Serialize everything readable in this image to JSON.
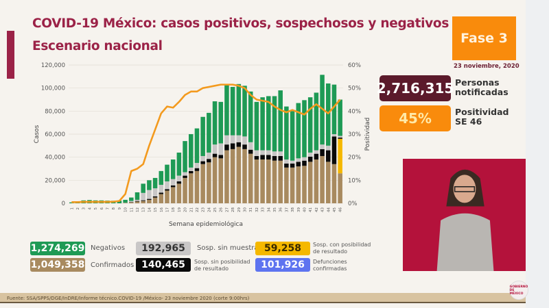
{
  "header": {
    "title": "COVID-19 México: casos positivos, sospechosos y negativos",
    "subtitle": "Escenario nacional",
    "phase": "Fase 3",
    "date": "23 noviembre, 2020"
  },
  "kpis": {
    "notified_value": "2,716,315",
    "notified_label_1": "Personas",
    "notified_label_2": "notificadas",
    "positivity_value": "45%",
    "positivity_label_1": "Positividad",
    "positivity_label_2": "SE 46"
  },
  "legend": [
    {
      "value": "1,274,269",
      "label": "Negativos",
      "color": "#1e9a55"
    },
    {
      "value": "1,049,358",
      "label": "Confirmados",
      "color": "#a88a5f"
    },
    {
      "value": "192,965",
      "label": "Sosp. sin muestra",
      "color": "#c9c7c7"
    },
    {
      "value": "140,465",
      "label_1": "Sosp. sin posibilidad",
      "label_2": "de resultado",
      "color": "#0a0a0a"
    },
    {
      "value": "59,258",
      "label_1": "Sosp. con posibilidad",
      "label_2": "de resultado",
      "color": "#f5b800"
    },
    {
      "value": "101,926",
      "label_1": "Defunciones",
      "label_2": "confirmadas",
      "color": "#5e74f0"
    }
  ],
  "footer": {
    "source": "Fuente: SSA/SPPS/DGE/InDRE/Informe técnico.COVID-19 /México- 23 noviembre 2020 (corte 9:00hrs)"
  },
  "logo_text": "GOBIERNO DE MÉXICO",
  "chart_data": {
    "type": "bar",
    "stacked": true,
    "xlabel": "Semana epidemiológica",
    "ylabel": "Casos",
    "y2label": "Positividad",
    "ylim": [
      0,
      120000
    ],
    "y2lim": [
      0,
      60
    ],
    "yticks": [
      "0",
      "20,000",
      "40,000",
      "60,000",
      "80,000",
      "100,000",
      "120,000"
    ],
    "y2ticks": [
      "0%",
      "10%",
      "20%",
      "30%",
      "40%",
      "50%",
      "60%"
    ],
    "grid": true,
    "categories": [
      "1",
      "2",
      "3",
      "4",
      "5",
      "6",
      "7",
      "8",
      "9",
      "10",
      "11",
      "12",
      "13",
      "14",
      "15",
      "16",
      "17",
      "18",
      "19",
      "20",
      "21",
      "22",
      "23",
      "24",
      "25",
      "26",
      "27",
      "28",
      "29",
      "30",
      "31",
      "32",
      "33",
      "34",
      "35",
      "36",
      "37",
      "38",
      "39",
      "40",
      "41",
      "42",
      "43",
      "44",
      "45",
      "46"
    ],
    "series": [
      {
        "name": "Confirmados",
        "color": "#a88a5f",
        "values": [
          0,
          0,
          0,
          0,
          0,
          0,
          0,
          0,
          0,
          300,
          800,
          1500,
          2000,
          3000,
          5000,
          8000,
          11000,
          14000,
          17000,
          22000,
          26000,
          28000,
          34000,
          35500,
          40000,
          39000,
          46000,
          47000,
          49000,
          47000,
          43000,
          38000,
          38000,
          38000,
          37000,
          37000,
          31000,
          31000,
          32000,
          32500,
          36000,
          38000,
          41000,
          36000,
          34000,
          26000
        ]
      },
      {
        "name": "Sosp. con posibilidad de resultado",
        "color": "#f5b800",
        "values": [
          0,
          0,
          0,
          0,
          0,
          0,
          0,
          0,
          0,
          0,
          0,
          0,
          0,
          0,
          0,
          0,
          0,
          0,
          0,
          0,
          0,
          0,
          0,
          0,
          0,
          0,
          0,
          0,
          0,
          0,
          0,
          0,
          0,
          0,
          0,
          0,
          0,
          0,
          0,
          0,
          0,
          0,
          0,
          0,
          0,
          30000
        ]
      },
      {
        "name": "Sosp. sin posibilidad de resultado",
        "color": "#0a0a0a",
        "values": [
          0,
          0,
          0,
          0,
          0,
          0,
          0,
          0,
          0,
          0,
          300,
          500,
          600,
          800,
          1000,
          1200,
          1300,
          1500,
          2000,
          2000,
          2000,
          2500,
          2500,
          3000,
          3000,
          3000,
          5000,
          5000,
          4000,
          4000,
          3500,
          3000,
          4000,
          4000,
          4000,
          4000,
          3500,
          3500,
          4000,
          4500,
          4500,
          5000,
          6000,
          10000,
          24000,
          1000
        ]
      },
      {
        "name": "Sosp. sin muestra",
        "color": "#c9c7c7",
        "values": [
          0,
          0,
          0,
          0,
          0,
          0,
          0,
          0,
          0,
          200,
          900,
          1000,
          6400,
          7700,
          7000,
          6800,
          6700,
          5500,
          5000,
          3000,
          3000,
          4500,
          4500,
          5500,
          8000,
          10000,
          8000,
          7000,
          6000,
          7000,
          6500,
          5000,
          4000,
          4000,
          4000,
          4000,
          3500,
          2500,
          3000,
          3000,
          3500,
          3000,
          4000,
          4000,
          2000,
          1500
        ]
      },
      {
        "name": "Negativos",
        "color": "#1e9a55",
        "values": [
          800,
          1500,
          2500,
          2800,
          2500,
          2500,
          2300,
          2200,
          2300,
          2500,
          3000,
          6500,
          8000,
          8500,
          9000,
          12000,
          14500,
          17000,
          20000,
          27000,
          29000,
          30000,
          34000,
          34500,
          37500,
          36000,
          44000,
          42000,
          44500,
          44000,
          44000,
          42000,
          46000,
          47000,
          48000,
          53000,
          46000,
          43000,
          48000,
          49500,
          48000,
          50000,
          60500,
          54000,
          43000,
          31500
        ]
      }
    ],
    "line": {
      "name": "Positividad",
      "color": "#f39a1e",
      "axis": "right",
      "values": [
        0.5,
        0.5,
        0.6,
        0.6,
        0.6,
        0.6,
        0.6,
        0.7,
        1,
        4,
        14,
        15,
        17,
        25,
        32,
        39,
        42,
        41.5,
        44,
        47,
        48.5,
        48.5,
        50,
        50.5,
        51,
        51.5,
        51.5,
        51.5,
        51,
        50,
        47,
        45,
        44.5,
        44,
        42,
        40.5,
        39.5,
        40.5,
        39.5,
        38.5,
        41,
        43,
        41,
        39,
        42,
        45
      ]
    }
  }
}
